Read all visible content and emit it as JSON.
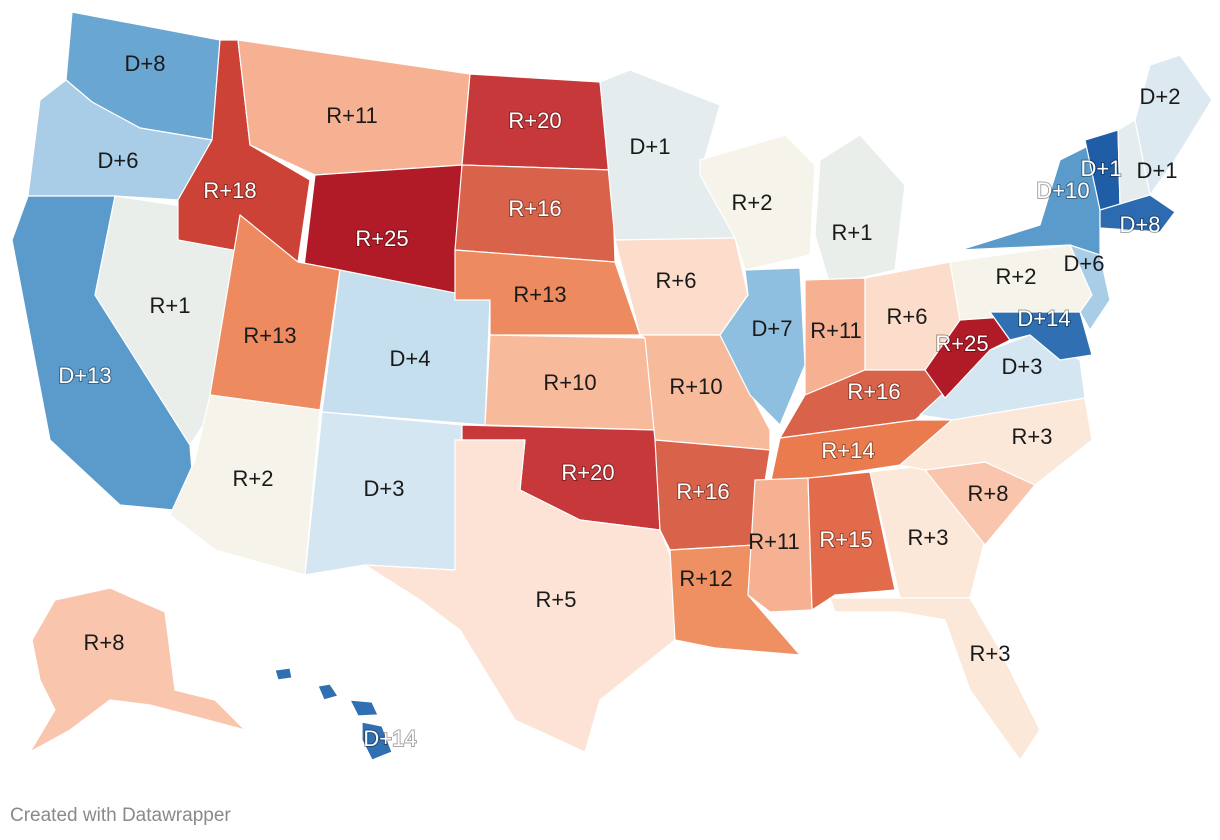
{
  "credit": "Created with Datawrapper",
  "colors": {
    "D+14": "#2f6fb2",
    "D+13": "#5a9bcc",
    "D+10": "#5a9bcc",
    "D+8": "#6aa6d2",
    "D+7": "#8fbfe0",
    "D+6": "#a9cde6",
    "D+4": "#c6dfee",
    "D+3": "#d4e6f1",
    "D+2": "#dde9f1",
    "D+1": "#e4ecee",
    "R+1": "#e9eeea",
    "R+2": "#f5f3ea",
    "R+3": "#fbe8d8",
    "R+5": "#fde3d6",
    "R+6": "#fcdcca",
    "R+8": "#f9c5ac",
    "R+10": "#f7bb9b",
    "R+11": "#f5b191",
    "R+12": "#ee9062",
    "R+13": "#ee8a5f",
    "R+14": "#ea7b4e",
    "R+15": "#e26b4b",
    "R+16": "#d9624a",
    "R+18": "#cc4236",
    "R+20": "#c6383a",
    "R+25": "#b11b27",
    "VT": "#1f5da6",
    "MA": "#2d6bb0"
  },
  "states": [
    {
      "id": "WA",
      "label": "D+8"
    },
    {
      "id": "OR",
      "label": "D+6"
    },
    {
      "id": "CA",
      "label": "D+13"
    },
    {
      "id": "NV",
      "label": "R+1"
    },
    {
      "id": "ID",
      "label": "R+18"
    },
    {
      "id": "MT",
      "label": "R+11"
    },
    {
      "id": "WY",
      "label": "R+25"
    },
    {
      "id": "UT",
      "label": "R+13"
    },
    {
      "id": "AZ",
      "label": "R+2"
    },
    {
      "id": "CO",
      "label": "D+4"
    },
    {
      "id": "NM",
      "label": "D+3"
    },
    {
      "id": "ND",
      "label": "R+20"
    },
    {
      "id": "SD",
      "label": "R+16"
    },
    {
      "id": "NE",
      "label": "R+13"
    },
    {
      "id": "KS",
      "label": "R+10"
    },
    {
      "id": "OK",
      "label": "R+20"
    },
    {
      "id": "TX",
      "label": "R+5"
    },
    {
      "id": "MN",
      "label": "D+1"
    },
    {
      "id": "IA",
      "label": "R+6"
    },
    {
      "id": "MO",
      "label": "R+10"
    },
    {
      "id": "AR",
      "label": "R+16"
    },
    {
      "id": "LA",
      "label": "R+12"
    },
    {
      "id": "WI",
      "label": "R+2"
    },
    {
      "id": "IL",
      "label": "D+7"
    },
    {
      "id": "MI",
      "label": "R+1"
    },
    {
      "id": "IN",
      "label": "R+11"
    },
    {
      "id": "OH",
      "label": "R+6"
    },
    {
      "id": "KY",
      "label": "R+16"
    },
    {
      "id": "TN",
      "label": "R+14"
    },
    {
      "id": "MS",
      "label": "R+11"
    },
    {
      "id": "AL",
      "label": "R+15"
    },
    {
      "id": "GA",
      "label": "R+3"
    },
    {
      "id": "FL",
      "label": "R+3"
    },
    {
      "id": "SC",
      "label": "R+8"
    },
    {
      "id": "NC",
      "label": "R+3"
    },
    {
      "id": "VA",
      "label": "D+3"
    },
    {
      "id": "WV",
      "label": "R+25"
    },
    {
      "id": "PA",
      "label": "R+2"
    },
    {
      "id": "NY",
      "label": "D+10"
    },
    {
      "id": "NJ",
      "label": "D+6"
    },
    {
      "id": "MD",
      "label": "D+14"
    },
    {
      "id": "VT",
      "label": "D+1"
    },
    {
      "id": "NH",
      "label": "D+1"
    },
    {
      "id": "ME",
      "label": "D+2"
    },
    {
      "id": "MA",
      "label": "D+8"
    },
    {
      "id": "AK",
      "label": "R+8"
    },
    {
      "id": "HI",
      "label": "D+14"
    }
  ]
}
